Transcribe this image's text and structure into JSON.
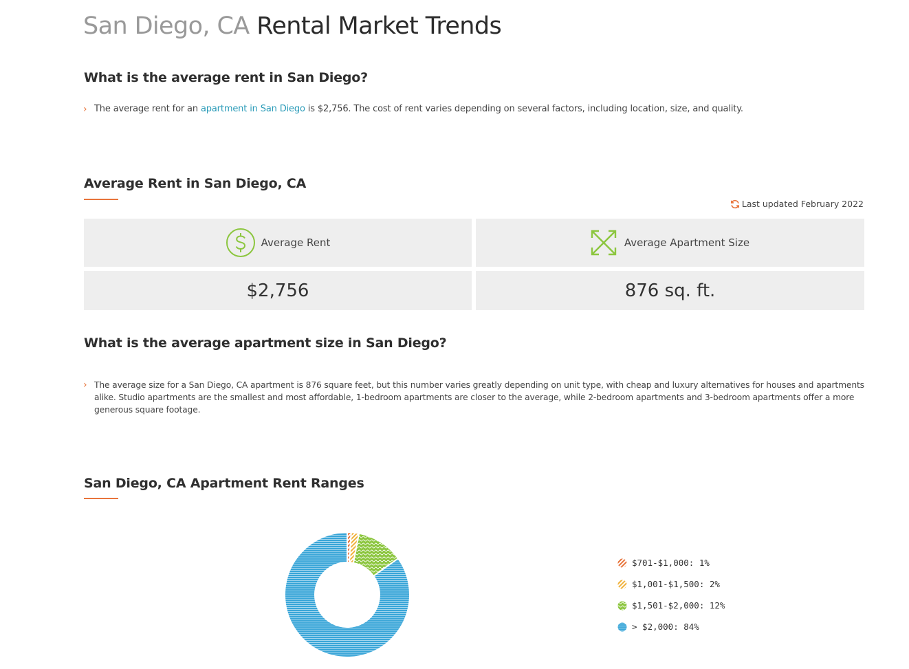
{
  "page": {
    "title_location": "San Diego, CA",
    "title_rest": "Rental Market Trends"
  },
  "section_rent_question": {
    "heading": "What is the average rent in San Diego?",
    "text_before_link": "The average rent for an ",
    "link_text": "apartment in San Diego",
    "text_after_link": " is $2,756. The cost of rent varies depending on several factors, including location, size, and quality."
  },
  "section_average_rent": {
    "heading": "Average Rent in San Diego, CA",
    "last_updated": "Last updated February 2022",
    "cards": [
      {
        "label": "Average Rent",
        "icon": "dollar-circle-icon",
        "value": "$2,756"
      },
      {
        "label": "Average Apartment Size",
        "icon": "expand-arrows-icon",
        "value": "876 sq. ft."
      }
    ]
  },
  "section_size_question": {
    "heading": "What is the average apartment size in San Diego?",
    "text": "The average size for a San Diego, CA apartment is 876 square feet, but this number varies greatly depending on unit type, with cheap and luxury alternatives for houses and apartments alike. Studio apartments are the smallest and most affordable, 1-bedroom apartments are closer to the average, while 2-bedroom apartments and 3-bedroom apartments offer a more generous square footage."
  },
  "section_rent_ranges": {
    "heading": "San Diego, CA Apartment Rent Ranges"
  },
  "colors": {
    "accent_orange": "#e8743b",
    "link_blue": "#2a9bb8",
    "icon_green": "#8cc63f",
    "card_bg": "#eeeeee"
  },
  "chart_data": {
    "type": "pie",
    "variant": "donut",
    "title": "San Diego, CA Apartment Rent Ranges",
    "categories": [
      "$701-$1,000",
      "$1,001-$1,500",
      "$1,501-$2,000",
      "> $2,000"
    ],
    "values": [
      1,
      2,
      12,
      84
    ],
    "unit": "%",
    "colors": [
      "#e8743b",
      "#f0b13a",
      "#8cc63f",
      "#3aa6d8"
    ],
    "patterns": [
      "diagonal-stripes",
      "diagonal-stripes",
      "wave",
      "horizontal-stripes"
    ],
    "legend": [
      "$701-$1,000: 1%",
      "$1,001-$1,500: 2%",
      "$1,501-$2,000: 12%",
      "> $2,000: 84%"
    ],
    "legend_position": "right",
    "start_angle": "top",
    "direction": "clockwise"
  }
}
